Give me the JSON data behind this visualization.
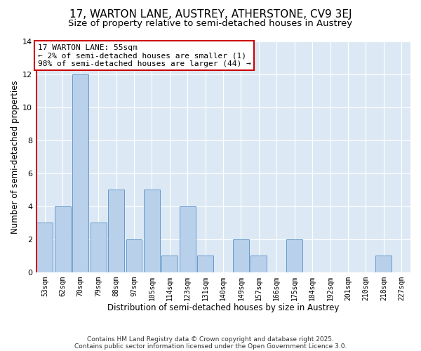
{
  "title": "17, WARTON LANE, AUSTREY, ATHERSTONE, CV9 3EJ",
  "subtitle": "Size of property relative to semi-detached houses in Austrey",
  "xlabel": "Distribution of semi-detached houses by size in Austrey",
  "ylabel": "Number of semi-detached properties",
  "categories": [
    "53sqm",
    "62sqm",
    "70sqm",
    "79sqm",
    "88sqm",
    "97sqm",
    "105sqm",
    "114sqm",
    "123sqm",
    "131sqm",
    "140sqm",
    "149sqm",
    "157sqm",
    "166sqm",
    "175sqm",
    "184sqm",
    "192sqm",
    "201sqm",
    "210sqm",
    "218sqm",
    "227sqm"
  ],
  "values": [
    3,
    4,
    12,
    3,
    5,
    2,
    5,
    1,
    4,
    1,
    0,
    2,
    1,
    0,
    2,
    0,
    0,
    0,
    0,
    1,
    0
  ],
  "bar_color": "#b8d0ea",
  "bar_edge_color": "#6699cc",
  "vline_color": "#cc0000",
  "annotation_text": "17 WARTON LANE: 55sqm\n← 2% of semi-detached houses are smaller (1)\n98% of semi-detached houses are larger (44) →",
  "annotation_box_color": "#ffffff",
  "annotation_box_edge_color": "#cc0000",
  "ylim": [
    0,
    14
  ],
  "yticks": [
    0,
    2,
    4,
    6,
    8,
    10,
    12,
    14
  ],
  "bg_color": "#dce9f5",
  "fig_bg_color": "#ffffff",
  "footer_line1": "Contains HM Land Registry data © Crown copyright and database right 2025.",
  "footer_line2": "Contains public sector information licensed under the Open Government Licence 3.0.",
  "title_fontsize": 11,
  "subtitle_fontsize": 9.5,
  "xlabel_fontsize": 8.5,
  "ylabel_fontsize": 8.5,
  "annotation_fontsize": 8
}
